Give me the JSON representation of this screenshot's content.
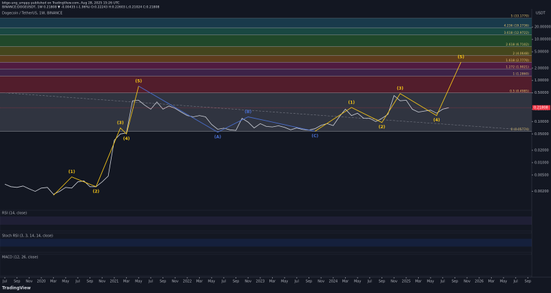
{
  "header": {
    "line1": "bitgo-ung_umppy published on TradingView.com, Aug 28, 2025 15:26 UTC",
    "line2": "BINANCE:DOGEUSDT, 1W 0.21808 ▼ -0.00435 (-1.96%) O:0.22243 H:0.22603 L:0.21024 C:0.21808",
    "pane_title": "Dogecoin / TetherUS, 1W, BINANCE",
    "currency": "USDT"
  },
  "footer": {
    "logo": "TradingView"
  },
  "panels": [
    {
      "title": "RSI (14, close)",
      "color": "#7e57c2"
    },
    {
      "title": "Stoch RSI (3, 3, 14, 14, close)",
      "color": "#2962ff"
    },
    {
      "title": "MACD (12, 26, close)",
      "color": "#26a69a"
    }
  ],
  "chart_data": {
    "type": "line",
    "log_scale": true,
    "color": "#d1d4dc",
    "x": [
      "2019-07",
      "2019-08",
      "2019-09",
      "2019-10",
      "2019-11",
      "2019-12",
      "2020-01",
      "2020-02",
      "2020-03",
      "2020-04",
      "2020-05",
      "2020-06",
      "2020-07",
      "2020-08",
      "2020-09",
      "2020-10",
      "2020-11",
      "2020-12",
      "2021-01",
      "2021-02",
      "2021-03",
      "2021-04",
      "2021-05",
      "2021-06",
      "2021-07",
      "2021-08",
      "2021-09",
      "2021-10",
      "2021-11",
      "2021-12",
      "2022-01",
      "2022-02",
      "2022-03",
      "2022-04",
      "2022-05",
      "2022-06",
      "2022-07",
      "2022-08",
      "2022-09",
      "2022-10",
      "2022-11",
      "2022-12",
      "2023-01",
      "2023-02",
      "2023-03",
      "2023-04",
      "2023-05",
      "2023-06",
      "2023-07",
      "2023-08",
      "2023-09",
      "2023-10",
      "2023-11",
      "2023-12",
      "2024-01",
      "2024-02",
      "2024-03",
      "2024-04",
      "2024-05",
      "2024-06",
      "2024-07",
      "2024-08",
      "2024-09",
      "2024-10",
      "2024-11",
      "2024-12",
      "2025-01",
      "2025-02",
      "2025-03",
      "2025-04",
      "2025-05",
      "2025-06",
      "2025-07",
      "2025-08"
    ],
    "values": [
      0.003,
      0.0026,
      0.0025,
      0.0027,
      0.0023,
      0.002,
      0.0024,
      0.0025,
      0.0017,
      0.002,
      0.0025,
      0.0024,
      0.0034,
      0.0036,
      0.0026,
      0.0026,
      0.0034,
      0.0047,
      0.035,
      0.05,
      0.053,
      0.32,
      0.33,
      0.25,
      0.2,
      0.3,
      0.2,
      0.24,
      0.21,
      0.17,
      0.14,
      0.13,
      0.14,
      0.13,
      0.085,
      0.065,
      0.069,
      0.063,
      0.061,
      0.12,
      0.097,
      0.07,
      0.089,
      0.076,
      0.074,
      0.079,
      0.072,
      0.063,
      0.07,
      0.064,
      0.062,
      0.067,
      0.081,
      0.089,
      0.08,
      0.13,
      0.2,
      0.14,
      0.16,
      0.12,
      0.12,
      0.1,
      0.12,
      0.15,
      0.43,
      0.32,
      0.33,
      0.2,
      0.17,
      0.18,
      0.19,
      0.16,
      0.2,
      0.218
    ],
    "last_price": {
      "value": 0.21808,
      "label": "0.21808",
      "color": "#f23645"
    },
    "ylim": [
      0.00084,
      51
    ],
    "yticks": [
      {
        "value": 0.002,
        "label": "0.00200"
      },
      {
        "value": 0.005,
        "label": "0.00500"
      },
      {
        "value": 0.01,
        "label": "0.01000"
      },
      {
        "value": 0.02,
        "label": "0.02000"
      },
      {
        "value": 0.05,
        "label": "0.05000"
      },
      {
        "value": 0.1,
        "label": "0.10000"
      },
      {
        "value": 0.2,
        "label": "0.20000"
      },
      {
        "value": 0.5,
        "label": "0.50000"
      },
      {
        "value": 1,
        "label": "1.00000"
      },
      {
        "value": 2,
        "label": "2.00000"
      },
      {
        "value": 5,
        "label": "5.00000"
      },
      {
        "value": 10,
        "label": "10.00000"
      },
      {
        "value": 20,
        "label": "20.00000"
      }
    ],
    "xticks": [
      {
        "value": "2019-07",
        "label": "Jul"
      },
      {
        "value": "2019-09",
        "label": "Sep"
      },
      {
        "value": "2019-11",
        "label": "Nov"
      },
      {
        "value": "2020-01",
        "label": "2020"
      },
      {
        "value": "2020-03",
        "label": "Mar"
      },
      {
        "value": "2020-05",
        "label": "May"
      },
      {
        "value": "2020-07",
        "label": "Jul"
      },
      {
        "value": "2020-09",
        "label": "Sep"
      },
      {
        "value": "2020-11",
        "label": "Nov"
      },
      {
        "value": "2021-01",
        "label": "2021"
      },
      {
        "value": "2021-03",
        "label": "Mar"
      },
      {
        "value": "2021-05",
        "label": "May"
      },
      {
        "value": "2021-07",
        "label": "Jul"
      },
      {
        "value": "2021-09",
        "label": "Sep"
      },
      {
        "value": "2021-11",
        "label": "Nov"
      },
      {
        "value": "2022-01",
        "label": "2022"
      },
      {
        "value": "2022-03",
        "label": "Mar"
      },
      {
        "value": "2022-05",
        "label": "May"
      },
      {
        "value": "2022-07",
        "label": "Jul"
      },
      {
        "value": "2022-09",
        "label": "Sep"
      },
      {
        "value": "2022-11",
        "label": "Nov"
      },
      {
        "value": "2023-01",
        "label": "2023"
      },
      {
        "value": "2023-03",
        "label": "Mar"
      },
      {
        "value": "2023-05",
        "label": "May"
      },
      {
        "value": "2023-07",
        "label": "Jul"
      },
      {
        "value": "2023-09",
        "label": "Sep"
      },
      {
        "value": "2023-11",
        "label": "Nov"
      },
      {
        "value": "2024-01",
        "label": "2024"
      },
      {
        "value": "2024-03",
        "label": "Mar"
      },
      {
        "value": "2024-05",
        "label": "May"
      },
      {
        "value": "2024-07",
        "label": "Jul"
      },
      {
        "value": "2024-09",
        "label": "Sep"
      },
      {
        "value": "2024-11",
        "label": "Nov"
      },
      {
        "value": "2025-01",
        "label": "2025"
      },
      {
        "value": "2025-03",
        "label": "Mar"
      },
      {
        "value": "2025-05",
        "label": "May"
      },
      {
        "value": "2025-07",
        "label": "Jul"
      },
      {
        "value": "2025-09",
        "label": "Sep"
      },
      {
        "value": "2025-11",
        "label": "Nov"
      },
      {
        "value": "2026-01",
        "label": "2026"
      },
      {
        "value": "2026-03",
        "label": "Mar"
      },
      {
        "value": "2026-05",
        "label": "May"
      },
      {
        "value": "2026-07",
        "label": "Jul"
      },
      {
        "value": "2026-09",
        "label": "Sep"
      }
    ],
    "fib_levels": [
      {
        "label": "0 (0.05774)",
        "value": 0.05774,
        "color": "#363a45"
      },
      {
        "label": "0.5 (0.4985)",
        "value": 0.4985,
        "color": "#5e1f2e"
      },
      {
        "label": "1 (1.2860)",
        "value": 1.286,
        "color": "#45264f"
      },
      {
        "label": "1.272 (1.9021)",
        "value": 1.9021,
        "color": "#5c1c45"
      },
      {
        "label": "1.618 (2.7770)",
        "value": 2.777,
        "color": "#6b431c"
      },
      {
        "label": "2 (4.0648)",
        "value": 4.0648,
        "color": "#4f4f1c"
      },
      {
        "label": "2.618 (6.7102)",
        "value": 6.7102,
        "color": "#23512b"
      },
      {
        "label": "3.618 (12.9722)",
        "value": 12.9722,
        "color": "#1b5148"
      },
      {
        "label": "4.236 (19.2736)",
        "value": 19.2736,
        "color": "#1b4152"
      },
      {
        "label": "5 (33.1770)",
        "value": 33.177,
        "color": "#5d606b"
      }
    ],
    "trendline": {
      "color": "#787b86",
      "x": [
        "2019-07",
        "2026-09"
      ],
      "values": [
        0.5,
        0.062
      ]
    },
    "waves": [
      {
        "color": "#f5c518",
        "labels": [
          null,
          "(1)",
          "(2)",
          "(3)",
          "(4)",
          "(5)"
        ],
        "x": [
          "2020-03",
          "2020-06",
          "2020-10",
          "2021-02",
          "2021-03",
          "2021-05"
        ],
        "values": [
          0.0016,
          0.0045,
          0.0026,
          0.07,
          0.05,
          0.73
        ]
      },
      {
        "color": "#4a6fd0",
        "labels": [
          null,
          "(A)",
          "(B)",
          "(C)"
        ],
        "x": [
          "2021-05",
          "2022-06",
          "2022-11",
          "2023-10"
        ],
        "values": [
          0.73,
          0.055,
          0.13,
          0.058
        ]
      },
      {
        "color": "#f5c518",
        "labels": [
          null,
          "(1)",
          "(2)",
          "(3)",
          "(4)",
          "(5)"
        ],
        "x": [
          "2023-10",
          "2024-04",
          "2024-09",
          "2024-12",
          "2025-06",
          "2025-10"
        ],
        "values": [
          0.058,
          0.22,
          0.095,
          0.48,
          0.14,
          2.8
        ]
      }
    ]
  }
}
